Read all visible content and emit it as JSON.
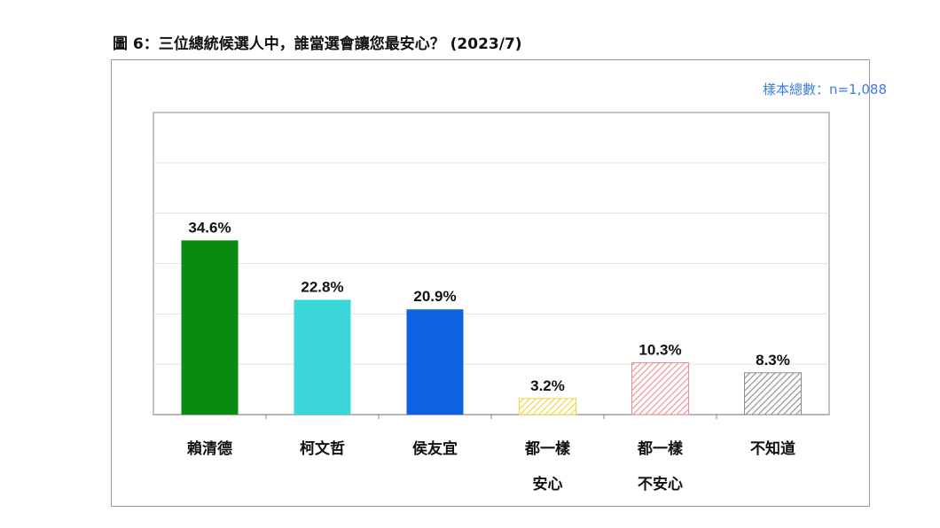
{
  "title": "圖 6：三位總統候選人中，誰當選會讓您最安心？ (2023/7)",
  "sample_note": "樣本總數：n=1,088",
  "chart_data": {
    "type": "bar",
    "title": "圖 6：三位總統候選人中，誰當選會讓您最安心？ (2023/7)",
    "xlabel": "",
    "ylabel": "",
    "ylim": [
      0,
      60
    ],
    "grid": true,
    "categories": [
      [
        "賴清德"
      ],
      [
        "柯文哲"
      ],
      [
        "侯友宜"
      ],
      [
        "都一樣",
        "安心"
      ],
      [
        "都一樣",
        "不安心"
      ],
      [
        "不知道"
      ]
    ],
    "values": [
      34.6,
      22.8,
      20.9,
      3.2,
      10.3,
      8.3
    ],
    "value_labels": [
      "34.6%",
      "22.8%",
      "20.9%",
      "3.2%",
      "10.3%",
      "8.3%"
    ],
    "colors": [
      "#0a8a10",
      "#3ad6d8",
      "#0e62e0",
      "#f2d33a",
      "#f08a90",
      "#8c8c8c"
    ],
    "patterns": [
      "solid",
      "solid",
      "solid",
      "hatch",
      "hatch",
      "hatch"
    ]
  }
}
